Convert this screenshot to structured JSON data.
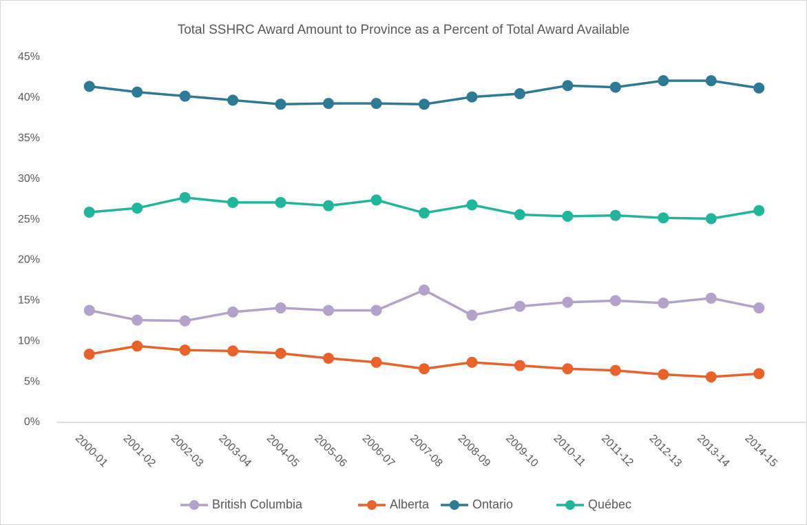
{
  "chart_data": {
    "type": "line",
    "title": "Total SSHRC Award Amount to Province as a Percent of Total Award Available",
    "categories": [
      "2000-01",
      "2001-02",
      "2002-03",
      "2003-04",
      "2004-05",
      "2005-06",
      "2006-07",
      "2007-08",
      "2008-09",
      "2009-10",
      "2010-11",
      "2011-12",
      "2012-13",
      "2013-14",
      "2014-15"
    ],
    "ylim": [
      0,
      45
    ],
    "yticks": [
      {
        "value": 0,
        "label": "0%"
      },
      {
        "value": 5,
        "label": "5%"
      },
      {
        "value": 10,
        "label": "10%"
      },
      {
        "value": 15,
        "label": "15%"
      },
      {
        "value": 20,
        "label": "20%"
      },
      {
        "value": 25,
        "label": "25%"
      },
      {
        "value": 30,
        "label": "30%"
      },
      {
        "value": 35,
        "label": "35%"
      },
      {
        "value": 40,
        "label": "40%"
      },
      {
        "value": 45,
        "label": "45%"
      }
    ],
    "legend": "bottom",
    "series": [
      {
        "name": "British Columbia",
        "color": "#b3a2c9",
        "values": [
          13.8,
          12.6,
          12.5,
          13.6,
          14.1,
          13.8,
          13.8,
          16.3,
          13.2,
          14.3,
          14.8,
          15.0,
          14.7,
          15.3,
          14.1
        ]
      },
      {
        "name": "Alberta",
        "color": "#e8622c",
        "values": [
          8.4,
          9.4,
          8.9,
          8.8,
          8.5,
          7.9,
          7.4,
          6.6,
          7.4,
          7.0,
          6.6,
          6.4,
          5.9,
          5.6,
          6.0
        ]
      },
      {
        "name": "Ontario",
        "color": "#2e7a94",
        "values": [
          41.4,
          40.7,
          40.2,
          39.7,
          39.2,
          39.3,
          39.3,
          39.2,
          40.1,
          40.5,
          41.5,
          41.3,
          42.1,
          42.1,
          41.2
        ]
      },
      {
        "name": "Québec",
        "color": "#21b59a",
        "values": [
          25.9,
          26.4,
          27.7,
          27.1,
          27.1,
          26.7,
          27.4,
          25.8,
          26.8,
          25.6,
          25.4,
          25.5,
          25.2,
          25.1,
          26.1
        ]
      }
    ]
  }
}
